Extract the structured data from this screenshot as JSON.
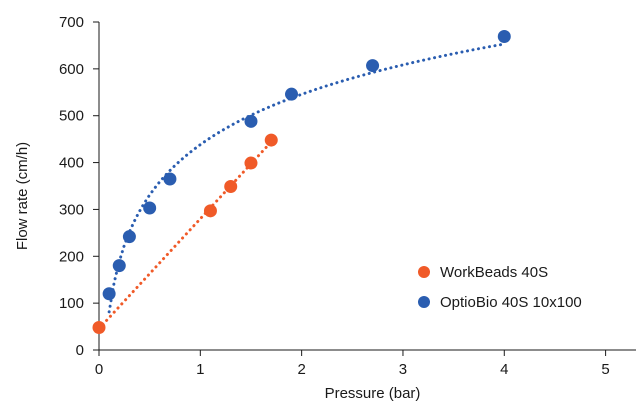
{
  "chart_data": {
    "type": "scatter",
    "xlabel": "Pressure (bar)",
    "ylabel": "Flow rate (cm/h)",
    "xlim": [
      0,
      5.3
    ],
    "ylim": [
      0,
      700
    ],
    "xticks": [
      "0",
      "1",
      "2",
      "3",
      "4",
      "5"
    ],
    "yticks": [
      "0",
      "100",
      "200",
      "300",
      "400",
      "500",
      "600",
      "700"
    ],
    "grid": false,
    "legend_position": "bottom-right",
    "series": [
      {
        "name": "WorkBeads 40S",
        "color": "#f05a28",
        "points": [
          [
            0.0,
            48
          ],
          [
            1.1,
            297
          ],
          [
            1.3,
            349
          ],
          [
            1.5,
            399
          ],
          [
            1.7,
            448
          ]
        ],
        "trendline": "linear"
      },
      {
        "name": "OptioBio 40S 10x100",
        "color": "#2a5db0",
        "points": [
          [
            0.1,
            120
          ],
          [
            0.2,
            180
          ],
          [
            0.3,
            242
          ],
          [
            0.5,
            303
          ],
          [
            0.7,
            365
          ],
          [
            1.5,
            488
          ],
          [
            1.9,
            546
          ],
          [
            2.7,
            607
          ],
          [
            4.0,
            669
          ]
        ],
        "trendline": "logarithmic"
      }
    ]
  }
}
